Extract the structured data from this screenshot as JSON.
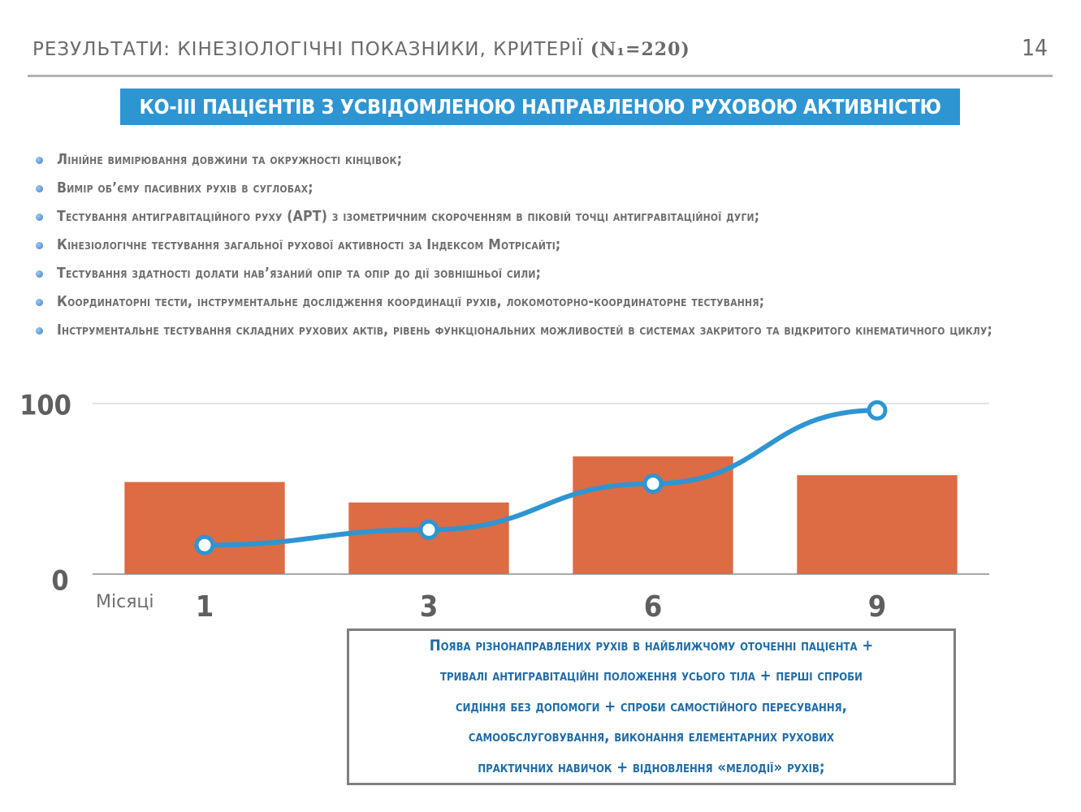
{
  "header": {
    "title_main": "РЕЗУЛЬТАТИ: КІНЕЗІОЛОГІЧНІ ПОКАЗНИКИ, КРИТЕРІЇ",
    "title_n": "(N₁=220)",
    "page_number": "14"
  },
  "banner": {
    "text": "КО-III ПАЦІЄНТІВ З УСВІДОМЛЕНОЮ НАПРАВЛЕНОЮ РУХОВОЮ АКТИВНІСТЮ"
  },
  "bullets": [
    "Лінійне вимірювання довжини та окружності кінцівок;",
    "Вимір об’єму пасивних рухів в суглобах;",
    "Тестування антигравітаційного руху (АРТ) з ізометричним скороченням в піковій точці антигравітаційної дуги;",
    "Кінезіологічне тестування загальної рухової активності за Індексом Мотрісайті;",
    "Тестування здатності долати нав’язаний опір та опір до дії зовнішньої сили;",
    "Координаторні тести, інструментальне дослідження координації рухів, локомоторно-координаторне тестування;",
    "Інструментальне тестування складних рухових актів, рівень функціональних можливостей в системах закритого та відкритого кінематичного циклу;"
  ],
  "chart_data": {
    "type": "bar",
    "xlabel": "Місяці",
    "categories": [
      "1",
      "3",
      "6",
      "9"
    ],
    "ylim": [
      0,
      100
    ],
    "y_ticks": [
      "0",
      "100"
    ],
    "grid": "horizontal line at 100",
    "series": [
      {
        "kind": "bar",
        "values": [
          54,
          42,
          69,
          58
        ],
        "color": "#dd6b43"
      },
      {
        "kind": "line",
        "values": [
          17,
          26,
          53,
          96
        ],
        "color": "#2e95d3"
      }
    ]
  },
  "result_box": {
    "lines": [
      "Поява різнонаправлених рухів в найближчому оточенні пацієнта +",
      "тривалі антигравітаційні положення усього тіла + перші спроби",
      "сидіння без допомоги + спроби самостійного пересування,",
      "самообслуговування, виконання елементарних рухових",
      "практичних навичок + відновлення «мелодії» рухів;"
    ]
  }
}
